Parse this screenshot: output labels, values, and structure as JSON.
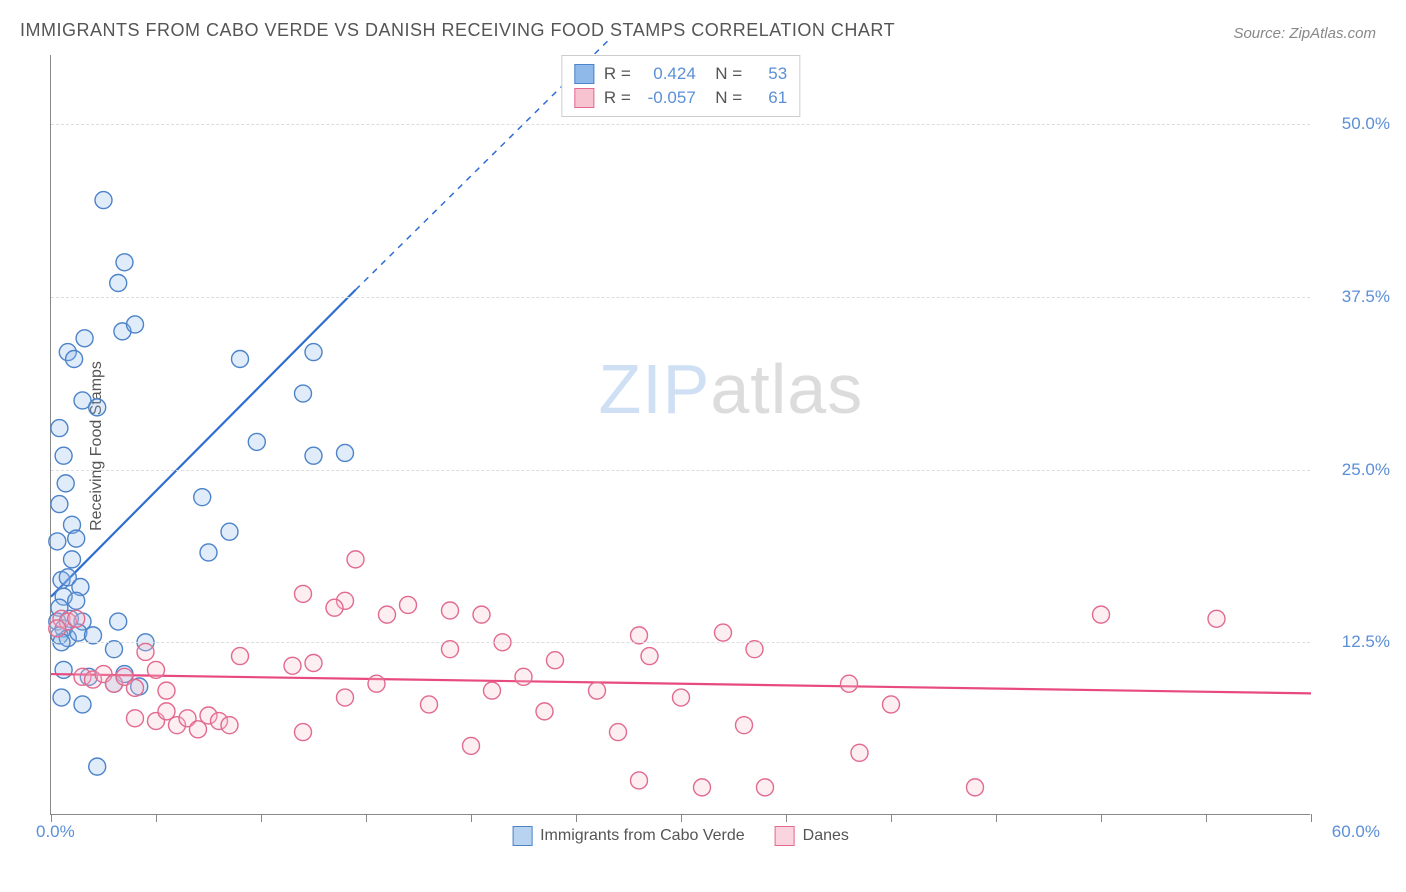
{
  "title": "IMMIGRANTS FROM CABO VERDE VS DANISH RECEIVING FOOD STAMPS CORRELATION CHART",
  "source": "Source: ZipAtlas.com",
  "watermark": {
    "left": "ZIP",
    "right": "atlas"
  },
  "chart": {
    "type": "scatter",
    "y_label": "Receiving Food Stamps",
    "xlim": [
      0,
      60
    ],
    "ylim": [
      0,
      55
    ],
    "x_ticks": [
      0,
      5,
      10,
      15,
      20,
      25,
      30,
      35,
      40,
      45,
      50,
      55,
      60
    ],
    "y_gridlines": [
      12.5,
      25.0,
      37.5,
      50.0
    ],
    "y_tick_labels": [
      "12.5%",
      "25.0%",
      "37.5%",
      "50.0%"
    ],
    "x_origin_label": "0.0%",
    "x_max_label": "60.0%",
    "background_color": "#ffffff",
    "grid_color": "#dddddd",
    "axis_color": "#888888",
    "marker_radius": 8.5,
    "marker_fill_opacity": 0.28,
    "marker_stroke_width": 1.4,
    "trend_line_width": 2.2,
    "series": [
      {
        "name": "Immigrants from Cabo Verde",
        "color_fill": "#8fb9e8",
        "color_stroke": "#4c83c9",
        "trend_color": "#2f6ed1",
        "stats": {
          "R": "0.424",
          "N": "53"
        },
        "trend": {
          "x1": 0,
          "y1": 15.8,
          "x2": 14.5,
          "y2": 38.0,
          "dash_extend_x": 26.5,
          "dash_extend_y": 56
        },
        "points": [
          [
            2.5,
            44.5
          ],
          [
            3.5,
            40.0
          ],
          [
            3.2,
            38.5
          ],
          [
            0.8,
            33.5
          ],
          [
            1.6,
            34.5
          ],
          [
            3.4,
            35.0
          ],
          [
            4.0,
            35.5
          ],
          [
            1.1,
            33.0
          ],
          [
            1.5,
            30.0
          ],
          [
            2.2,
            29.5
          ],
          [
            9.0,
            33.0
          ],
          [
            12.5,
            33.5
          ],
          [
            12.0,
            30.5
          ],
          [
            0.4,
            28.0
          ],
          [
            0.6,
            26.0
          ],
          [
            0.7,
            24.0
          ],
          [
            0.4,
            22.5
          ],
          [
            1.0,
            21.0
          ],
          [
            1.2,
            20.0
          ],
          [
            0.3,
            19.8
          ],
          [
            1.0,
            18.5
          ],
          [
            7.2,
            23.0
          ],
          [
            9.8,
            27.0
          ],
          [
            8.5,
            20.5
          ],
          [
            7.5,
            19.0
          ],
          [
            12.5,
            26.0
          ],
          [
            14.0,
            26.2
          ],
          [
            0.5,
            17.0
          ],
          [
            0.8,
            17.2
          ],
          [
            1.4,
            16.5
          ],
          [
            0.6,
            15.8
          ],
          [
            1.2,
            15.5
          ],
          [
            0.4,
            15.0
          ],
          [
            0.9,
            14.2
          ],
          [
            0.3,
            14.0
          ],
          [
            0.6,
            13.5
          ],
          [
            1.5,
            14.0
          ],
          [
            0.4,
            13.0
          ],
          [
            0.8,
            12.8
          ],
          [
            1.3,
            13.2
          ],
          [
            0.5,
            12.5
          ],
          [
            3.2,
            14.0
          ],
          [
            2.0,
            13.0
          ],
          [
            4.5,
            12.5
          ],
          [
            3.0,
            12.0
          ],
          [
            0.6,
            10.5
          ],
          [
            1.8,
            10.0
          ],
          [
            3.5,
            10.2
          ],
          [
            3.0,
            9.5
          ],
          [
            4.2,
            9.3
          ],
          [
            0.5,
            8.5
          ],
          [
            1.5,
            8.0
          ],
          [
            2.2,
            3.5
          ]
        ]
      },
      {
        "name": "Danes",
        "color_fill": "#f7c3d1",
        "color_stroke": "#e26a8f",
        "trend_color": "#e84a7f",
        "stats": {
          "R": "-0.057",
          "N": "61"
        },
        "trend": {
          "x1": 0,
          "y1": 10.2,
          "x2": 60,
          "y2": 8.8
        },
        "points": [
          [
            0.5,
            14.2
          ],
          [
            0.8,
            14.0
          ],
          [
            0.3,
            13.5
          ],
          [
            1.2,
            14.2
          ],
          [
            14.5,
            18.5
          ],
          [
            12.0,
            16.0
          ],
          [
            14.0,
            15.5
          ],
          [
            13.5,
            15.0
          ],
          [
            16.0,
            14.5
          ],
          [
            17.0,
            15.2
          ],
          [
            19.0,
            14.8
          ],
          [
            20.5,
            14.5
          ],
          [
            28.0,
            13.0
          ],
          [
            28.5,
            11.5
          ],
          [
            32.0,
            13.2
          ],
          [
            33.5,
            12.0
          ],
          [
            38.0,
            9.5
          ],
          [
            19.0,
            12.0
          ],
          [
            21.5,
            12.5
          ],
          [
            24.0,
            11.2
          ],
          [
            50.0,
            14.5
          ],
          [
            55.5,
            14.2
          ],
          [
            1.5,
            10.0
          ],
          [
            2.0,
            9.8
          ],
          [
            2.5,
            10.2
          ],
          [
            3.0,
            9.5
          ],
          [
            3.5,
            10.0
          ],
          [
            4.0,
            9.2
          ],
          [
            4.5,
            11.8
          ],
          [
            5.0,
            10.5
          ],
          [
            5.5,
            9.0
          ],
          [
            9.0,
            11.5
          ],
          [
            11.5,
            10.8
          ],
          [
            12.5,
            11.0
          ],
          [
            4.0,
            7.0
          ],
          [
            5.0,
            6.8
          ],
          [
            5.5,
            7.5
          ],
          [
            6.0,
            6.5
          ],
          [
            6.5,
            7.0
          ],
          [
            7.0,
            6.2
          ],
          [
            7.5,
            7.2
          ],
          [
            8.0,
            6.8
          ],
          [
            8.5,
            6.5
          ],
          [
            12.0,
            6.0
          ],
          [
            14.0,
            8.5
          ],
          [
            15.5,
            9.5
          ],
          [
            18.0,
            8.0
          ],
          [
            20.0,
            5.0
          ],
          [
            21.0,
            9.0
          ],
          [
            22.5,
            10.0
          ],
          [
            23.5,
            7.5
          ],
          [
            26.0,
            9.0
          ],
          [
            27.0,
            6.0
          ],
          [
            28.0,
            2.5
          ],
          [
            30.0,
            8.5
          ],
          [
            31.0,
            2.0
          ],
          [
            33.0,
            6.5
          ],
          [
            34.0,
            2.0
          ],
          [
            38.5,
            4.5
          ],
          [
            40.0,
            8.0
          ],
          [
            44.0,
            2.0
          ]
        ]
      }
    ],
    "legend_bottom": [
      {
        "label": "Immigrants from Cabo Verde",
        "fill": "#b8d3f0",
        "stroke": "#4c83c9"
      },
      {
        "label": "Danes",
        "fill": "#fad4df",
        "stroke": "#e26a8f"
      }
    ]
  }
}
